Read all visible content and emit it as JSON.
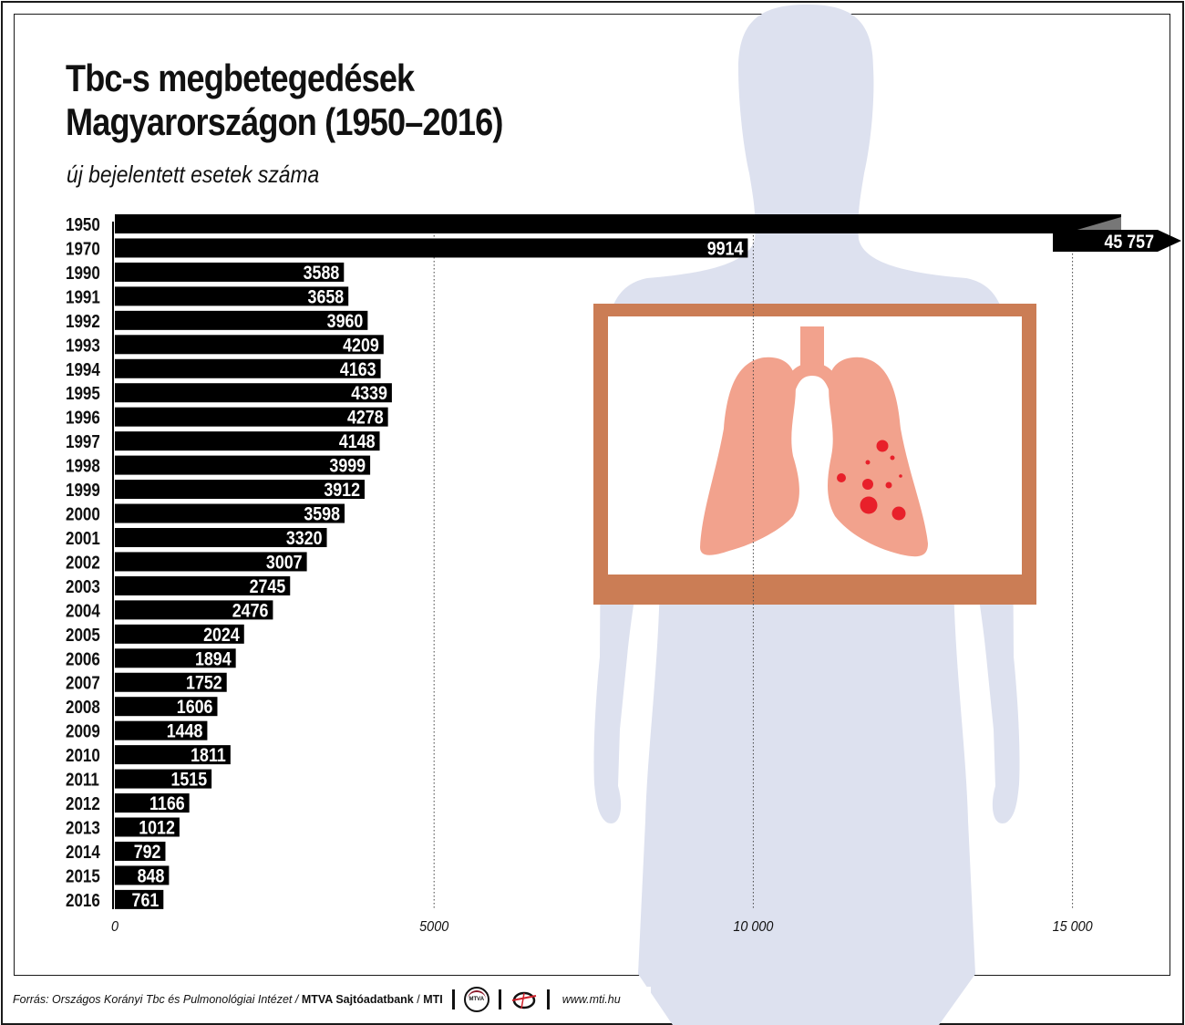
{
  "title_line1": "Tbc-s megbetegedések",
  "title_line2": "Magyarországon (1950–2016)",
  "subtitle": "új bejelentett esetek száma",
  "footer": {
    "source": "Forrás: Országos Korányi Tbc és Pulmonológiai Intézet /",
    "agency": "MTVA Sajtóadatbank",
    "slash": "/",
    "mti": "MTI",
    "logo_text": "MTVA",
    "url": "www.mti.hu"
  },
  "colors": {
    "bar": "#000000",
    "label": "#ffffff",
    "silhouette": "#dde1ef",
    "xray_frame": "#cb7d55",
    "lung": "#f2a28d",
    "lesion": "#e8202a"
  },
  "icons": [
    "person-silhouette",
    "lungs-xray-icon",
    "mtva-logo-icon",
    "mti-logo-icon"
  ],
  "chart_data": {
    "type": "bar",
    "orientation": "horizontal",
    "categories": [
      "1950",
      "1970",
      "1990",
      "1991",
      "1992",
      "1993",
      "1994",
      "1995",
      "1996",
      "1997",
      "1998",
      "1999",
      "2000",
      "2001",
      "2002",
      "2003",
      "2004",
      "2005",
      "2006",
      "2007",
      "2008",
      "2009",
      "2010",
      "2011",
      "2012",
      "2013",
      "2014",
      "2015",
      "2016"
    ],
    "values": [
      45757,
      9914,
      3588,
      3658,
      3960,
      4209,
      4163,
      4339,
      4278,
      4148,
      3999,
      3912,
      3598,
      3320,
      3007,
      2745,
      2476,
      2024,
      1894,
      1752,
      1606,
      1448,
      1811,
      1515,
      1166,
      1012,
      792,
      848,
      761
    ],
    "value_labels": [
      "45 757",
      "9914",
      "3588",
      "3658",
      "3960",
      "4209",
      "4163",
      "4339",
      "4278",
      "4148",
      "3999",
      "3912",
      "3598",
      "3320",
      "3007",
      "2745",
      "2476",
      "2024",
      "1894",
      "1752",
      "1606",
      "1448",
      "1811",
      "1515",
      "1166",
      "1012",
      "792",
      "848",
      "761"
    ],
    "x_ticks": [
      0,
      5000,
      10000,
      15000
    ],
    "x_tick_labels": [
      "0",
      "5000",
      "10 000",
      "15 000"
    ],
    "xlim": [
      0,
      15000
    ],
    "grid": true,
    "note": "1950 bar exceeds axis (arrow)"
  }
}
